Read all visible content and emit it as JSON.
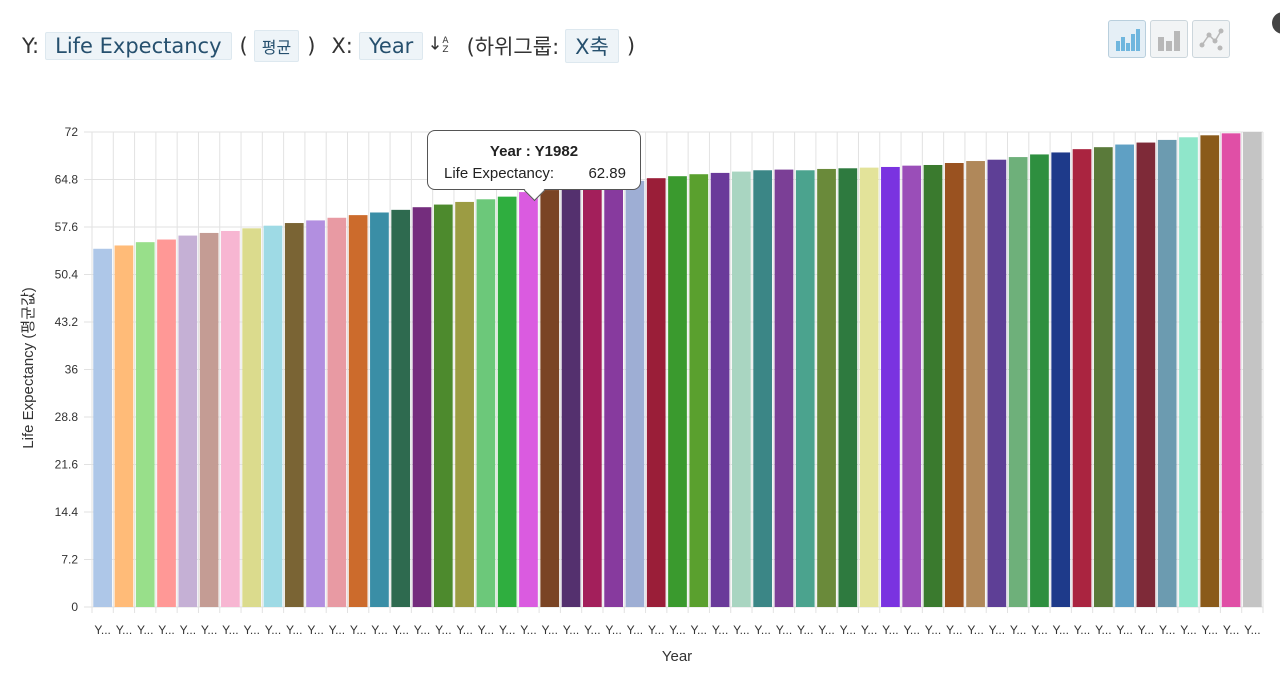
{
  "toolbar": {
    "y_prefix": "Y:",
    "y_field": "Life Expectancy",
    "paren_open": "(",
    "aggregation": "평균",
    "paren_close": ")",
    "x_prefix": "X:",
    "x_field": "Year",
    "subgroup_prefix": "(하위그룹:",
    "subgroup_value": "X축",
    "subgroup_close": ")"
  },
  "chart_buttons": [
    {
      "name": "bar-chart-colored-icon",
      "active": true
    },
    {
      "name": "bar-chart-gray-icon",
      "active": false
    },
    {
      "name": "scatter-plot-icon",
      "active": false
    }
  ],
  "tooltip": {
    "title": "Year : Y1982",
    "label": "Life Expectancy:",
    "value": "62.89"
  },
  "chart_data": {
    "type": "bar",
    "xlabel": "Year",
    "ylabel": "Life Expectancy (평균값)",
    "ylim": [
      0,
      72
    ],
    "yticks": [
      "0",
      "7.2",
      "14.4",
      "21.6",
      "28.8",
      "36",
      "43.2",
      "50.4",
      "57.6",
      "64.8",
      "72"
    ],
    "tick_label_truncated": "Y...",
    "grid": true,
    "highlight_index": 20,
    "values": [
      54.3,
      54.8,
      55.3,
      55.7,
      56.3,
      56.7,
      57.0,
      57.4,
      57.8,
      58.2,
      58.6,
      59.0,
      59.4,
      59.8,
      60.2,
      60.6,
      61.0,
      61.4,
      61.8,
      62.2,
      62.89,
      63.2,
      63.5,
      63.8,
      64.2,
      64.6,
      65.0,
      65.3,
      65.6,
      65.8,
      66.0,
      66.2,
      66.3,
      66.2,
      66.4,
      66.5,
      66.6,
      66.7,
      66.9,
      67.0,
      67.3,
      67.6,
      67.8,
      68.2,
      68.6,
      68.9,
      69.4,
      69.7,
      70.1,
      70.4,
      70.8,
      71.2,
      71.5,
      71.8,
      72.0
    ],
    "colors": [
      "#aec7e8",
      "#ffbb78",
      "#98df8a",
      "#ff9896",
      "#c5b0d5",
      "#c49c94",
      "#f7b6d2",
      "#dbdb8d",
      "#9edae5",
      "#7a6434",
      "#b28fe0",
      "#e89aa3",
      "#cc6b2c",
      "#3a8ea6",
      "#2e6a4f",
      "#742d7d",
      "#4d8a2d",
      "#9c9c43",
      "#6cc87a",
      "#2fae3f",
      "#da5be0",
      "#7a4424",
      "#54306e",
      "#a31f5b",
      "#873a9e",
      "#9eaed4",
      "#9a1e38",
      "#3a9a2e",
      "#5aa02e",
      "#6a3a9a",
      "#a9d5c1",
      "#3b8686",
      "#7b3f96",
      "#4ba38e",
      "#6a8a3a",
      "#2e7a3f",
      "#e3e39a",
      "#7a33e0",
      "#9a4eb8",
      "#3a7a2e",
      "#9a5220",
      "#b0885a",
      "#5e3f96",
      "#6eb07a",
      "#2e8f3f",
      "#1e3a8a",
      "#aa2440",
      "#5a7a3a",
      "#5fa0c4",
      "#7e2a38",
      "#6c9bb0",
      "#8fe6ca",
      "#8a5a1a",
      "#e04fa6",
      "#c4c4c4"
    ]
  }
}
